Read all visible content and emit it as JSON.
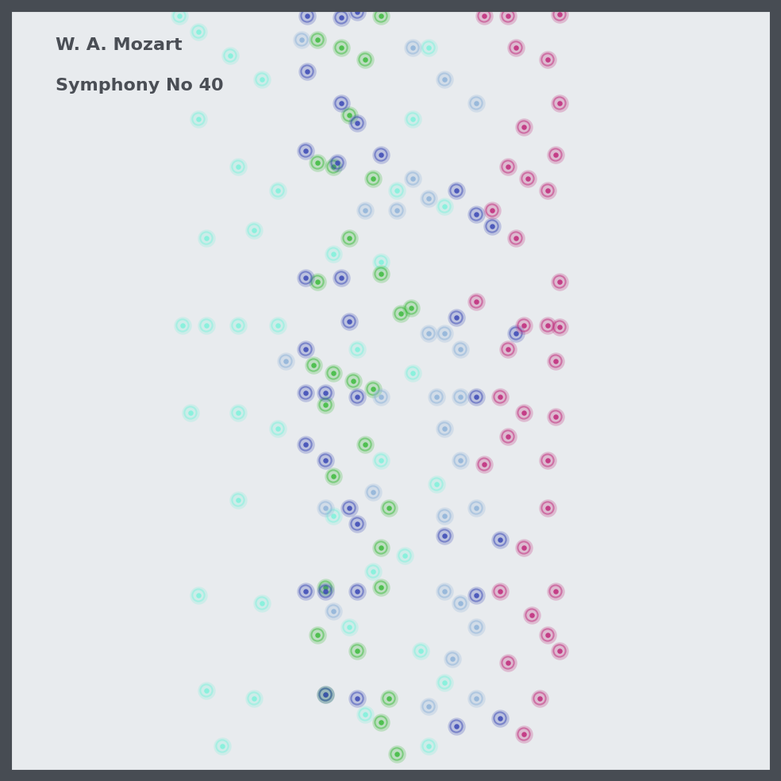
{
  "chart_data": {
    "type": "scatter",
    "title": "W. A. Mozart",
    "subtitle": "Symphony No 40",
    "tick_labels": false,
    "xlim": [
      14,
      970
    ],
    "ylim": [
      970,
      14
    ],
    "series": [
      {
        "color": "#7ff2dc",
        "x": [
          226,
          250,
          290,
          330,
          250,
          300,
          350,
          260,
          320,
          420,
          230,
          260,
          300,
          350,
          450,
          520,
          240,
          300,
          350,
          480,
          300,
          420,
          510,
          250,
          330,
          440,
          530,
          260,
          320,
          460,
          540,
          280,
          500,
          560,
          520,
          540,
          480,
          550,
          470,
          560
        ],
        "values": [
          20,
          40,
          70,
          100,
          150,
          210,
          240,
          300,
          290,
          320,
          410,
          410,
          410,
          410,
          440,
          470,
          520,
          520,
          540,
          580,
          630,
          650,
          700,
          750,
          760,
          790,
          820,
          870,
          880,
          900,
          940,
          940,
          240,
          260,
          150,
          60,
          330,
          610,
          720,
          860
        ]
      },
      {
        "color": "#3dbb3d",
        "x": [
          400,
          430,
          460,
          480,
          440,
          400,
          420,
          470,
          440,
          400,
          480,
          505,
          518,
          395,
          420,
          445,
          470,
          410,
          460,
          420,
          490,
          480,
          410,
          480,
          400,
          450,
          410,
          490,
          480,
          500
        ],
        "values": [
          50,
          60,
          75,
          20,
          145,
          205,
          210,
          225,
          300,
          355,
          345,
          395,
          388,
          460,
          470,
          480,
          490,
          510,
          560,
          600,
          640,
          690,
          740,
          740,
          800,
          820,
          875,
          880,
          910,
          950
        ]
      },
      {
        "color": "#8fb3d9",
        "x": [
          380,
          520,
          560,
          600,
          520,
          540,
          460,
          500,
          540,
          560,
          580,
          360,
          550,
          580,
          560,
          580,
          410,
          600,
          560,
          420,
          560,
          580,
          600,
          570,
          540,
          600,
          480,
          470
        ],
        "values": [
          50,
          60,
          100,
          130,
          225,
          250,
          265,
          265,
          420,
          420,
          440,
          455,
          500,
          500,
          540,
          580,
          640,
          640,
          650,
          770,
          745,
          760,
          790,
          830,
          890,
          880,
          500,
          620
        ]
      },
      {
        "color": "#3a48b5",
        "x": [
          387,
          430,
          450,
          387,
          430,
          450,
          385,
          425,
          480,
          575,
          600,
          620,
          385,
          430,
          575,
          650,
          440,
          385,
          385,
          410,
          450,
          600,
          385,
          410,
          440,
          450,
          560,
          630,
          385,
          410,
          450,
          600,
          410,
          450,
          575,
          630
        ],
        "values": [
          20,
          22,
          15,
          90,
          130,
          155,
          190,
          205,
          195,
          240,
          270,
          285,
          350,
          350,
          400,
          420,
          405,
          440,
          495,
          495,
          500,
          500,
          560,
          580,
          640,
          660,
          675,
          680,
          745,
          745,
          745,
          750,
          875,
          880,
          915,
          905
        ]
      },
      {
        "color": "#c0287a",
        "x": [
          610,
          640,
          705,
          650,
          690,
          705,
          660,
          700,
          640,
          665,
          690,
          620,
          650,
          705,
          600,
          660,
          690,
          705,
          640,
          700,
          630,
          660,
          700,
          640,
          690,
          610,
          690,
          660,
          630,
          700,
          670,
          690,
          640,
          680,
          660,
          705
        ],
        "values": [
          20,
          20,
          18,
          60,
          75,
          130,
          160,
          195,
          210,
          225,
          240,
          265,
          300,
          355,
          380,
          410,
          410,
          412,
          440,
          455,
          500,
          520,
          525,
          550,
          580,
          585,
          640,
          690,
          745,
          745,
          775,
          800,
          835,
          880,
          925,
          820
        ]
      }
    ]
  }
}
